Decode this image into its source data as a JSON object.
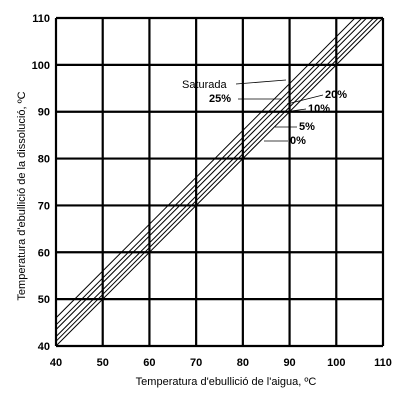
{
  "chart_data": {
    "type": "line",
    "title": "",
    "xlabel": "Temperatura d'ebullició de l'aigua, ºC",
    "ylabel": "Temperatura d'ebullició de la dissolució, ºC",
    "xlim": [
      40,
      110
    ],
    "ylim": [
      40,
      110
    ],
    "x_ticks": [
      "40",
      "50",
      "60",
      "70",
      "80",
      "90",
      "100",
      "110"
    ],
    "y_ticks": [
      "40",
      "50",
      "60",
      "70",
      "80",
      "90",
      "100",
      "110"
    ],
    "grid": true,
    "series": [
      {
        "name": "Saturada",
        "x": [
          40,
          110
        ],
        "y": [
          46,
          116
        ],
        "bold": false
      },
      {
        "name": "25%",
        "x": [
          40,
          110
        ],
        "y": [
          44.5,
          114.5
        ],
        "bold": true
      },
      {
        "name": "20%",
        "x": [
          40,
          110
        ],
        "y": [
          43.5,
          113.5
        ],
        "bold": true
      },
      {
        "name": "10%",
        "x": [
          40,
          110
        ],
        "y": [
          42,
          112
        ],
        "bold": true
      },
      {
        "name": "5%",
        "x": [
          40,
          110
        ],
        "y": [
          41,
          111
        ],
        "bold": true
      },
      {
        "name": "0%",
        "x": [
          40,
          110
        ],
        "y": [
          40,
          110
        ],
        "bold": true
      }
    ]
  }
}
